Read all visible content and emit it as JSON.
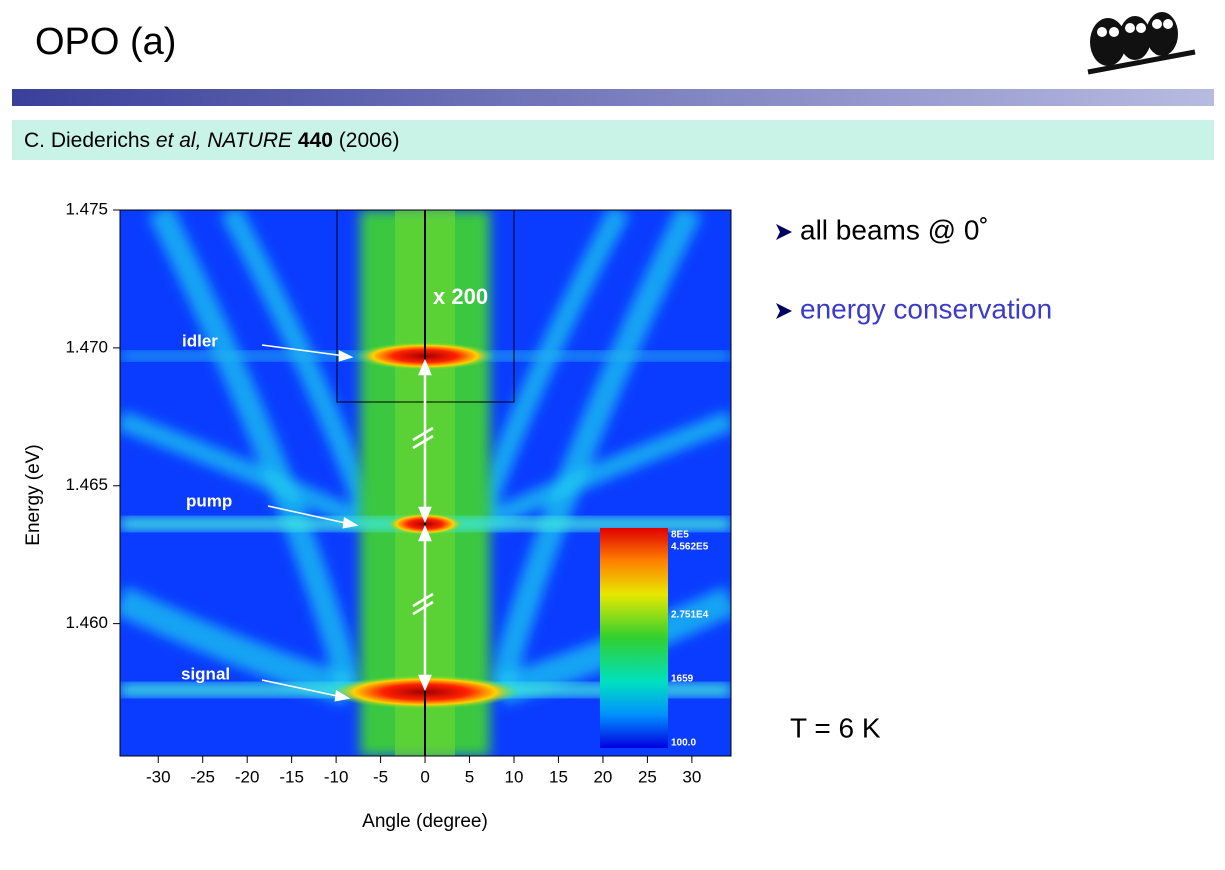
{
  "header": {
    "title": "OPO (a)"
  },
  "citation": {
    "authors": "C. Diederichs",
    "etal": "et al,",
    "journal": "NATURE",
    "volume": "440",
    "year": "(2006)"
  },
  "figure": {
    "x_axis": {
      "label": "Angle (degree)",
      "range": [
        -34.3,
        34.4
      ],
      "ticks": [
        -30,
        -25,
        -20,
        -15,
        -10,
        -5,
        0,
        5,
        10,
        15,
        20,
        25,
        30
      ]
    },
    "y_axis": {
      "label": "Energy (eV)",
      "range": [
        1.4552,
        1.475
      ],
      "ticks": [
        {
          "value": 1.475,
          "label": "1.475"
        },
        {
          "value": 1.47,
          "label": "1.470"
        },
        {
          "value": 1.465,
          "label": "1.465"
        },
        {
          "value": 1.46,
          "label": "1.460"
        }
      ]
    },
    "annotations": {
      "idler": "idler",
      "pump": "pump",
      "signal": "signal",
      "magnification": "x 200"
    },
    "colorbar": [
      "8E5",
      "4.562E5",
      "2.751E4",
      "1659",
      "100.0"
    ]
  },
  "bullets": [
    "all beams @ 0˚",
    "energy conservation"
  ],
  "temperature": "T = 6 K"
}
